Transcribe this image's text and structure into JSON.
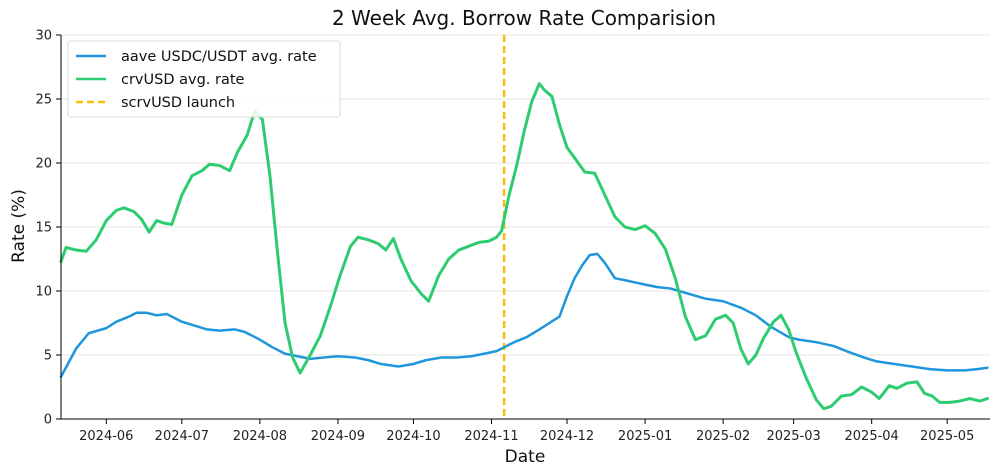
{
  "chart_data": {
    "type": "line",
    "title": "2 Week Avg. Borrow Rate Comparision",
    "xlabel": "Date",
    "ylabel": "Rate (%)",
    "xlim": [
      "2024-05-14",
      "2025-05-18"
    ],
    "ylim": [
      0,
      30
    ],
    "y_ticks": [
      0,
      5,
      10,
      15,
      20,
      25,
      30
    ],
    "x_ticks": [
      "2024-06",
      "2024-07",
      "2024-08",
      "2024-09",
      "2024-10",
      "2024-11",
      "2024-12",
      "2025-01",
      "2025-02",
      "2025-03",
      "2025-04",
      "2025-05"
    ],
    "grid": "horizontal",
    "legend_position": "top-left",
    "series": [
      {
        "name": "aave USDC/USDT avg. rate",
        "color": "#1f96dc",
        "style": "solid",
        "points": [
          [
            "2024-05-14",
            3.3
          ],
          [
            "2024-05-20",
            5.5
          ],
          [
            "2024-05-25",
            6.7
          ],
          [
            "2024-06-01",
            7.1
          ],
          [
            "2024-06-05",
            7.6
          ],
          [
            "2024-06-10",
            8.0
          ],
          [
            "2024-06-13",
            8.3
          ],
          [
            "2024-06-17",
            8.3
          ],
          [
            "2024-06-21",
            8.1
          ],
          [
            "2024-06-25",
            8.2
          ],
          [
            "2024-07-01",
            7.6
          ],
          [
            "2024-07-06",
            7.3
          ],
          [
            "2024-07-11",
            7.0
          ],
          [
            "2024-07-16",
            6.9
          ],
          [
            "2024-07-22",
            7.0
          ],
          [
            "2024-07-26",
            6.8
          ],
          [
            "2024-08-01",
            6.2
          ],
          [
            "2024-08-06",
            5.6
          ],
          [
            "2024-08-11",
            5.1
          ],
          [
            "2024-08-16",
            4.9
          ],
          [
            "2024-08-21",
            4.7
          ],
          [
            "2024-08-26",
            4.8
          ],
          [
            "2024-09-01",
            4.9
          ],
          [
            "2024-09-08",
            4.8
          ],
          [
            "2024-09-13",
            4.6
          ],
          [
            "2024-09-18",
            4.3
          ],
          [
            "2024-09-25",
            4.1
          ],
          [
            "2024-10-01",
            4.3
          ],
          [
            "2024-10-06",
            4.6
          ],
          [
            "2024-10-12",
            4.8
          ],
          [
            "2024-10-18",
            4.8
          ],
          [
            "2024-10-24",
            4.9
          ],
          [
            "2024-10-29",
            5.1
          ],
          [
            "2024-11-03",
            5.3
          ],
          [
            "2024-11-06",
            5.6
          ],
          [
            "2024-11-10",
            6.0
          ],
          [
            "2024-11-15",
            6.4
          ],
          [
            "2024-11-20",
            7.0
          ],
          [
            "2024-11-24",
            7.5
          ],
          [
            "2024-11-28",
            8.0
          ],
          [
            "2024-12-01",
            9.6
          ],
          [
            "2024-12-04",
            11.0
          ],
          [
            "2024-12-07",
            12.0
          ],
          [
            "2024-12-10",
            12.8
          ],
          [
            "2024-12-13",
            12.9
          ],
          [
            "2024-12-16",
            12.2
          ],
          [
            "2024-12-20",
            11.0
          ],
          [
            "2024-12-25",
            10.8
          ],
          [
            "2025-01-01",
            10.5
          ],
          [
            "2025-01-06",
            10.3
          ],
          [
            "2025-01-11",
            10.2
          ],
          [
            "2025-01-18",
            9.8
          ],
          [
            "2025-01-25",
            9.4
          ],
          [
            "2025-02-01",
            9.2
          ],
          [
            "2025-02-08",
            8.7
          ],
          [
            "2025-02-14",
            8.1
          ],
          [
            "2025-02-20",
            7.2
          ],
          [
            "2025-02-27",
            6.4
          ],
          [
            "2025-03-03",
            6.2
          ],
          [
            "2025-03-10",
            6.0
          ],
          [
            "2025-03-17",
            5.7
          ],
          [
            "2025-03-22",
            5.3
          ],
          [
            "2025-03-29",
            4.8
          ],
          [
            "2025-04-03",
            4.5
          ],
          [
            "2025-04-10",
            4.3
          ],
          [
            "2025-04-17",
            4.1
          ],
          [
            "2025-04-24",
            3.9
          ],
          [
            "2025-05-01",
            3.8
          ],
          [
            "2025-05-08",
            3.8
          ],
          [
            "2025-05-13",
            3.9
          ],
          [
            "2025-05-17",
            4.0
          ]
        ]
      },
      {
        "name": "crvUSD avg. rate",
        "color": "#2ecc71",
        "style": "solid",
        "points": [
          [
            "2024-05-14",
            12.3
          ],
          [
            "2024-05-16",
            13.4
          ],
          [
            "2024-05-20",
            13.2
          ],
          [
            "2024-05-24",
            13.1
          ],
          [
            "2024-05-28",
            14.0
          ],
          [
            "2024-06-01",
            15.5
          ],
          [
            "2024-06-05",
            16.3
          ],
          [
            "2024-06-08",
            16.5
          ],
          [
            "2024-06-12",
            16.2
          ],
          [
            "2024-06-15",
            15.6
          ],
          [
            "2024-06-18",
            14.6
          ],
          [
            "2024-06-21",
            15.5
          ],
          [
            "2024-06-24",
            15.3
          ],
          [
            "2024-06-27",
            15.2
          ],
          [
            "2024-07-01",
            17.5
          ],
          [
            "2024-07-05",
            19.0
          ],
          [
            "2024-07-09",
            19.4
          ],
          [
            "2024-07-12",
            19.9
          ],
          [
            "2024-07-16",
            19.8
          ],
          [
            "2024-07-20",
            19.4
          ],
          [
            "2024-07-23",
            20.8
          ],
          [
            "2024-07-27",
            22.2
          ],
          [
            "2024-07-30",
            24.1
          ],
          [
            "2024-08-02",
            23.4
          ],
          [
            "2024-08-05",
            19.0
          ],
          [
            "2024-08-08",
            13.0
          ],
          [
            "2024-08-11",
            7.5
          ],
          [
            "2024-08-14",
            4.8
          ],
          [
            "2024-08-17",
            3.6
          ],
          [
            "2024-08-21",
            5.0
          ],
          [
            "2024-08-25",
            6.5
          ],
          [
            "2024-08-29",
            8.8
          ],
          [
            "2024-09-02",
            11.3
          ],
          [
            "2024-09-06",
            13.5
          ],
          [
            "2024-09-09",
            14.2
          ],
          [
            "2024-09-13",
            14.0
          ],
          [
            "2024-09-17",
            13.7
          ],
          [
            "2024-09-20",
            13.2
          ],
          [
            "2024-09-23",
            14.1
          ],
          [
            "2024-09-26",
            12.5
          ],
          [
            "2024-09-30",
            10.8
          ],
          [
            "2024-10-04",
            9.8
          ],
          [
            "2024-10-07",
            9.2
          ],
          [
            "2024-10-11",
            11.2
          ],
          [
            "2024-10-15",
            12.5
          ],
          [
            "2024-10-19",
            13.2
          ],
          [
            "2024-10-23",
            13.5
          ],
          [
            "2024-10-27",
            13.8
          ],
          [
            "2024-10-31",
            13.9
          ],
          [
            "2024-11-03",
            14.2
          ],
          [
            "2024-11-05",
            14.7
          ],
          [
            "2024-11-08",
            17.5
          ],
          [
            "2024-11-11",
            19.8
          ],
          [
            "2024-11-14",
            22.5
          ],
          [
            "2024-11-17",
            24.8
          ],
          [
            "2024-11-20",
            26.2
          ],
          [
            "2024-11-22",
            25.7
          ],
          [
            "2024-11-25",
            25.2
          ],
          [
            "2024-11-28",
            23.0
          ],
          [
            "2024-12-01",
            21.2
          ],
          [
            "2024-12-04",
            20.4
          ],
          [
            "2024-12-08",
            19.3
          ],
          [
            "2024-12-12",
            19.2
          ],
          [
            "2024-12-16",
            17.5
          ],
          [
            "2024-12-20",
            15.8
          ],
          [
            "2024-12-24",
            15.0
          ],
          [
            "2024-12-28",
            14.8
          ],
          [
            "2025-01-01",
            15.1
          ],
          [
            "2025-01-05",
            14.5
          ],
          [
            "2025-01-09",
            13.3
          ],
          [
            "2025-01-13",
            11.0
          ],
          [
            "2025-01-17",
            8.0
          ],
          [
            "2025-01-21",
            6.2
          ],
          [
            "2025-01-25",
            6.5
          ],
          [
            "2025-01-29",
            7.8
          ],
          [
            "2025-02-02",
            8.1
          ],
          [
            "2025-02-05",
            7.5
          ],
          [
            "2025-02-08",
            5.5
          ],
          [
            "2025-02-11",
            4.3
          ],
          [
            "2025-02-14",
            5.0
          ],
          [
            "2025-02-17",
            6.3
          ],
          [
            "2025-02-21",
            7.6
          ],
          [
            "2025-02-24",
            8.1
          ],
          [
            "2025-02-27",
            7.0
          ],
          [
            "2025-03-02",
            5.2
          ],
          [
            "2025-03-06",
            3.2
          ],
          [
            "2025-03-10",
            1.5
          ],
          [
            "2025-03-13",
            0.8
          ],
          [
            "2025-03-16",
            1.0
          ],
          [
            "2025-03-20",
            1.8
          ],
          [
            "2025-03-24",
            1.9
          ],
          [
            "2025-03-28",
            2.5
          ],
          [
            "2025-04-01",
            2.1
          ],
          [
            "2025-04-04",
            1.6
          ],
          [
            "2025-04-08",
            2.6
          ],
          [
            "2025-04-11",
            2.4
          ],
          [
            "2025-04-15",
            2.8
          ],
          [
            "2025-04-19",
            2.9
          ],
          [
            "2025-04-22",
            2.0
          ],
          [
            "2025-04-25",
            1.8
          ],
          [
            "2025-04-28",
            1.3
          ],
          [
            "2025-05-02",
            1.3
          ],
          [
            "2025-05-06",
            1.4
          ],
          [
            "2025-05-10",
            1.6
          ],
          [
            "2025-05-14",
            1.4
          ],
          [
            "2025-05-17",
            1.6
          ]
        ]
      }
    ],
    "vlines": [
      {
        "name": "scrvUSD launch",
        "x": "2024-11-06",
        "color": "#f5be0b",
        "style": "dashed"
      }
    ],
    "legend": [
      {
        "label": "aave USDC/USDT avg. rate",
        "color": "#1f96dc",
        "style": "solid"
      },
      {
        "label": "crvUSD avg. rate",
        "color": "#2ecc71",
        "style": "solid"
      },
      {
        "label": "scrvUSD launch",
        "color": "#f5be0b",
        "style": "dashed"
      }
    ]
  }
}
